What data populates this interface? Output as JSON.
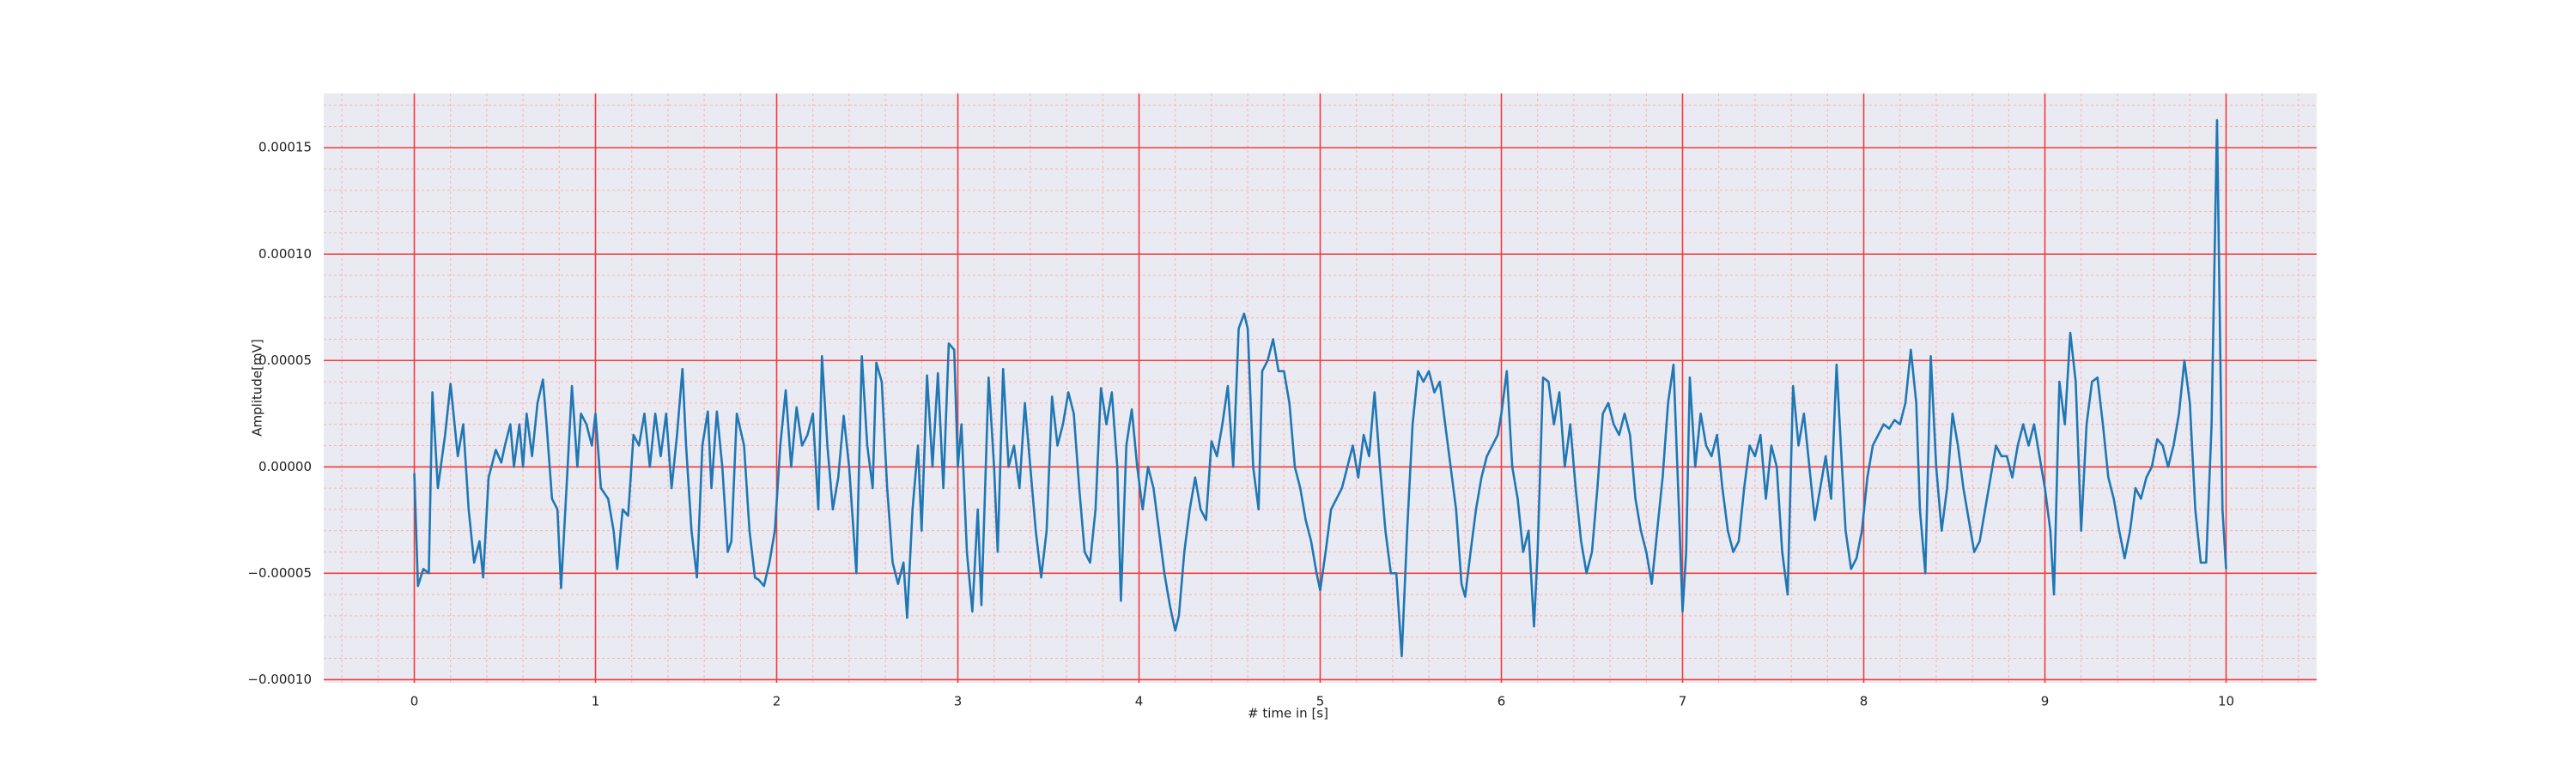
{
  "chart_data": {
    "type": "line",
    "xlabel": "# time in [s]",
    "ylabel": "Amplitude[mV]",
    "color": "#1f77b4",
    "grid": true,
    "minor_grid": true,
    "xlim": [
      -0.5,
      10.5
    ],
    "xticks": [
      0,
      1,
      2,
      3,
      4,
      5,
      6,
      7,
      8,
      9,
      10
    ],
    "ylim": [
      -0.0001015,
      0.0001755
    ],
    "yticks": [
      {
        "value": -0.0001,
        "label": "−0.00010"
      },
      {
        "value": -5e-05,
        "label": "−0.00005"
      },
      {
        "value": 0,
        "label": "0.00000"
      },
      {
        "value": 5e-05,
        "label": "0.00005"
      },
      {
        "value": 0.0001,
        "label": "0.00010"
      },
      {
        "value": 0.00015,
        "label": "0.00015"
      }
    ],
    "x": [
      0,
      0.02,
      0.05,
      0.08,
      0.1,
      0.13,
      0.17,
      0.2,
      0.24,
      0.27,
      0.3,
      0.33,
      0.36,
      0.38,
      0.41,
      0.45,
      0.48,
      0.5,
      0.53,
      0.55,
      0.58,
      0.6,
      0.62,
      0.65,
      0.68,
      0.71,
      0.73,
      0.76,
      0.79,
      0.81,
      0.84,
      0.87,
      0.9,
      0.92,
      0.95,
      0.98,
      1.0,
      1.03,
      1.07,
      1.1,
      1.12,
      1.15,
      1.18,
      1.21,
      1.24,
      1.27,
      1.3,
      1.33,
      1.36,
      1.39,
      1.42,
      1.45,
      1.48,
      1.5,
      1.53,
      1.56,
      1.59,
      1.62,
      1.64,
      1.67,
      1.7,
      1.73,
      1.75,
      1.78,
      1.82,
      1.85,
      1.88,
      1.9,
      1.93,
      1.96,
      1.99,
      2.02,
      2.05,
      2.08,
      2.11,
      2.14,
      2.17,
      2.2,
      2.23,
      2.25,
      2.28,
      2.31,
      2.34,
      2.37,
      2.4,
      2.44,
      2.47,
      2.5,
      2.53,
      2.55,
      2.58,
      2.61,
      2.64,
      2.67,
      2.7,
      2.72,
      2.75,
      2.78,
      2.8,
      2.83,
      2.86,
      2.89,
      2.92,
      2.95,
      2.98,
      3.0,
      3.02,
      3.05,
      3.08,
      3.11,
      3.13,
      3.17,
      3.2,
      3.22,
      3.25,
      3.28,
      3.31,
      3.34,
      3.37,
      3.4,
      3.43,
      3.46,
      3.49,
      3.52,
      3.55,
      3.58,
      3.61,
      3.64,
      3.67,
      3.7,
      3.73,
      3.76,
      3.79,
      3.82,
      3.85,
      3.88,
      3.9,
      3.93,
      3.96,
      3.99,
      4.02,
      4.05,
      4.08,
      4.11,
      4.14,
      4.17,
      4.2,
      4.22,
      4.25,
      4.28,
      4.31,
      4.34,
      4.37,
      4.4,
      4.43,
      4.46,
      4.49,
      4.52,
      4.55,
      4.58,
      4.6,
      4.63,
      4.66,
      4.68,
      4.71,
      4.74,
      4.77,
      4.8,
      4.83,
      4.86,
      4.89,
      4.92,
      4.95,
      4.98,
      5.0,
      5.03,
      5.06,
      5.09,
      5.12,
      5.15,
      5.18,
      5.21,
      5.24,
      5.27,
      5.3,
      5.33,
      5.36,
      5.39,
      5.42,
      5.45,
      5.48,
      5.51,
      5.54,
      5.57,
      5.6,
      5.63,
      5.66,
      5.69,
      5.72,
      5.75,
      5.78,
      5.8,
      5.83,
      5.86,
      5.89,
      5.92,
      5.95,
      5.98,
      6.0,
      6.03,
      6.06,
      6.09,
      6.12,
      6.15,
      6.18,
      6.2,
      6.23,
      6.26,
      6.29,
      6.32,
      6.35,
      6.38,
      6.41,
      6.44,
      6.47,
      6.5,
      6.53,
      6.56,
      6.59,
      6.62,
      6.65,
      6.68,
      6.71,
      6.74,
      6.77,
      6.8,
      6.83,
      6.86,
      6.89,
      6.92,
      6.95,
      6.98,
      7.0,
      7.02,
      7.04,
      7.07,
      7.1,
      7.13,
      7.16,
      7.19,
      7.22,
      7.25,
      7.28,
      7.31,
      7.34,
      7.37,
      7.4,
      7.43,
      7.46,
      7.49,
      7.52,
      7.55,
      7.58,
      7.61,
      7.64,
      7.67,
      7.7,
      7.73,
      7.76,
      7.79,
      7.82,
      7.85,
      7.88,
      7.9,
      7.93,
      7.96,
      7.99,
      8.02,
      8.05,
      8.08,
      8.11,
      8.14,
      8.17,
      8.2,
      8.23,
      8.26,
      8.29,
      8.31,
      8.34,
      8.37,
      8.4,
      8.43,
      8.46,
      8.49,
      8.52,
      8.55,
      8.58,
      8.61,
      8.64,
      8.67,
      8.7,
      8.73,
      8.76,
      8.79,
      8.82,
      8.85,
      8.88,
      8.91,
      8.94,
      8.97,
      9.0,
      9.03,
      9.05,
      9.08,
      9.11,
      9.14,
      9.17,
      9.2,
      9.23,
      9.26,
      9.29,
      9.32,
      9.35,
      9.38,
      9.41,
      9.44,
      9.47,
      9.5,
      9.53,
      9.56,
      9.59,
      9.62,
      9.65,
      9.68,
      9.71,
      9.74,
      9.77,
      9.8,
      9.83,
      9.86,
      9.89,
      9.92,
      9.95,
      9.98,
      10.0
    ],
    "values": [
      -3e-06,
      -5.6e-05,
      -4.8e-05,
      -5e-05,
      3.5e-05,
      -1e-05,
      1.5e-05,
      3.9e-05,
      5e-06,
      2e-05,
      -2e-05,
      -4.5e-05,
      -3.5e-05,
      -5.2e-05,
      -5e-06,
      8e-06,
      2e-06,
      1e-05,
      2e-05,
      0,
      2e-05,
      0,
      2.5e-05,
      5e-06,
      3e-05,
      4.1e-05,
      2e-05,
      -1.5e-05,
      -2e-05,
      -5.7e-05,
      -1e-05,
      3.8e-05,
      0,
      2.5e-05,
      2e-05,
      1e-05,
      2.5e-05,
      -1e-05,
      -1.5e-05,
      -3e-05,
      -4.8e-05,
      -2e-05,
      -2.3e-05,
      1.5e-05,
      1e-05,
      2.5e-05,
      0,
      2.5e-05,
      5e-06,
      2.5e-05,
      -1e-05,
      1.5e-05,
      4.6e-05,
      1e-05,
      -3e-05,
      -5.2e-05,
      1e-05,
      2.6e-05,
      -1e-05,
      2.6e-05,
      0,
      -4e-05,
      -3.5e-05,
      2.5e-05,
      1e-05,
      -3e-05,
      -5.2e-05,
      -5.3e-05,
      -5.6e-05,
      -4.5e-05,
      -3e-05,
      1e-05,
      3.6e-05,
      0,
      2.8e-05,
      1e-05,
      1.5e-05,
      2.5e-05,
      -2e-05,
      5.2e-05,
      1e-05,
      -2e-05,
      -5e-06,
      2.4e-05,
      0,
      -5e-05,
      5.2e-05,
      1e-05,
      -1e-05,
      4.9e-05,
      4e-05,
      -1e-05,
      -4.5e-05,
      -5.5e-05,
      -4.5e-05,
      -7.1e-05,
      -2e-05,
      1e-05,
      -3e-05,
      4.3e-05,
      0,
      4.4e-05,
      -1e-05,
      5.8e-05,
      5.5e-05,
      0,
      2e-05,
      -4e-05,
      -6.8e-05,
      -2e-05,
      -6.5e-05,
      4.2e-05,
      0,
      -4e-05,
      4.6e-05,
      0,
      1e-05,
      -1e-05,
      3e-05,
      0,
      -3e-05,
      -5.2e-05,
      -3e-05,
      3.3e-05,
      1e-05,
      2e-05,
      3.5e-05,
      2.5e-05,
      -1e-05,
      -4e-05,
      -4.5e-05,
      -2e-05,
      3.7e-05,
      2e-05,
      3.5e-05,
      0,
      -6.3e-05,
      1e-05,
      2.7e-05,
      0,
      -2e-05,
      0,
      -1e-05,
      -3e-05,
      -5e-05,
      -6.5e-05,
      -7.7e-05,
      -7e-05,
      -4e-05,
      -2e-05,
      -5e-06,
      -2e-05,
      -2.5e-05,
      1.2e-05,
      5e-06,
      2e-05,
      3.8e-05,
      0,
      6.5e-05,
      7.2e-05,
      6.5e-05,
      0,
      -2e-05,
      4.5e-05,
      5e-05,
      6e-05,
      4.5e-05,
      4.5e-05,
      3e-05,
      0,
      -1e-05,
      -2.5e-05,
      -3.5e-05,
      -5e-05,
      -5.8e-05,
      -4e-05,
      -2e-05,
      -1.5e-05,
      -1e-05,
      0,
      1e-05,
      -5e-06,
      1.5e-05,
      5e-06,
      3.5e-05,
      0,
      -3e-05,
      -5e-05,
      -5e-05,
      -8.9e-05,
      -3e-05,
      2e-05,
      4.5e-05,
      4e-05,
      4.5e-05,
      3.5e-05,
      4e-05,
      2e-05,
      0,
      -2e-05,
      -5.5e-05,
      -6.1e-05,
      -4e-05,
      -2e-05,
      -5e-06,
      5e-06,
      1e-05,
      1.5e-05,
      2.5e-05,
      4.5e-05,
      0,
      -1.5e-05,
      -4e-05,
      -3e-05,
      -7.5e-05,
      -4e-05,
      4.2e-05,
      4e-05,
      2e-05,
      3.5e-05,
      0,
      2e-05,
      -1e-05,
      -3.5e-05,
      -5e-05,
      -4e-05,
      -1e-05,
      2.5e-05,
      3e-05,
      2e-05,
      1.5e-05,
      2.5e-05,
      1.5e-05,
      -1.5e-05,
      -3e-05,
      -4e-05,
      -5.5e-05,
      -3e-05,
      -5e-06,
      3e-05,
      4.8e-05,
      -2e-05,
      -6.8e-05,
      -4e-05,
      4.2e-05,
      0,
      2.5e-05,
      1e-05,
      5e-06,
      1.5e-05,
      -1e-05,
      -3e-05,
      -4e-05,
      -3.5e-05,
      -1e-05,
      1e-05,
      5e-06,
      1.5e-05,
      -1.5e-05,
      1e-05,
      0,
      -4e-05,
      -6e-05,
      3.8e-05,
      1e-05,
      2.5e-05,
      0,
      -2.5e-05,
      -1e-05,
      5e-06,
      -1.5e-05,
      4.8e-05,
      0,
      -3e-05,
      -4.8e-05,
      -4.3e-05,
      -3e-05,
      -5e-06,
      1e-05,
      1.5e-05,
      2e-05,
      1.8e-05,
      2.2e-05,
      2e-05,
      3e-05,
      5.5e-05,
      3e-05,
      -2e-05,
      -5e-05,
      5.2e-05,
      0,
      -3e-05,
      -1e-05,
      2.5e-05,
      1e-05,
      -1e-05,
      -2.5e-05,
      -4e-05,
      -3.5e-05,
      -2e-05,
      -5e-06,
      1e-05,
      5e-06,
      5e-06,
      -5e-06,
      1e-05,
      2e-05,
      1e-05,
      2e-05,
      5e-06,
      -1e-05,
      -3e-05,
      -6e-05,
      4e-05,
      2e-05,
      6.3e-05,
      4e-05,
      -3e-05,
      2e-05,
      4e-05,
      4.2e-05,
      2e-05,
      -5e-06,
      -1.5e-05,
      -3e-05,
      -4.3e-05,
      -3e-05,
      -1e-05,
      -1.5e-05,
      -5e-06,
      0,
      1.3e-05,
      1e-05,
      0,
      1e-05,
      2.5e-05,
      5e-05,
      3e-05,
      -2e-05,
      -4.5e-05,
      -4.5e-05,
      2e-05,
      0.000163,
      -2e-05,
      -4.8e-05
    ]
  }
}
